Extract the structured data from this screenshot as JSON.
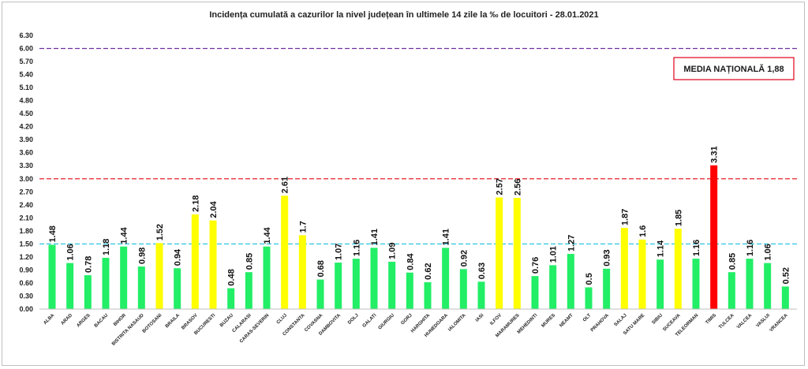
{
  "chart_data": {
    "type": "bar",
    "title": "Incidența cumulată a cazurilor la nivel județean în ultimele 14 zile la ‰ de locuitori - 28.01.2021",
    "ylim": [
      0,
      6.3
    ],
    "yticks": [
      "0.00",
      "0.30",
      "0.60",
      "0.90",
      "1.20",
      "1.50",
      "1.80",
      "2.10",
      "2.40",
      "2.70",
      "3.00",
      "3.30",
      "3.60",
      "3.90",
      "4.20",
      "4.50",
      "4.80",
      "5.10",
      "5.40",
      "5.70",
      "6.00",
      "6.30"
    ],
    "categories": [
      "ALBA",
      "ARAD",
      "ARGES",
      "BACAU",
      "BIHOR",
      "BISTRITA NASAUD",
      "BOTOSANI",
      "BRAILA",
      "BRASOV",
      "BUCURESTI",
      "BUZAU",
      "CALARASI",
      "CARAS-SEVERIN",
      "CLUJ",
      "CONSTANTA",
      "COVASNA",
      "DAMBOVITA",
      "DOLJ",
      "GALATI",
      "GIURGIU",
      "GORJ",
      "HARGHITA",
      "HUNEDOARA",
      "IALOMITA",
      "IASI",
      "ILFOV",
      "MARAMURES",
      "MEHEDINTI",
      "MURES",
      "NEAMT",
      "OLT",
      "PRAHOVA",
      "SALAJ",
      "SATU MARE",
      "SIBIU",
      "SUCEAVA",
      "TELEORMAN",
      "TIMIS",
      "TULCEA",
      "VALCEA",
      "VASLUI",
      "VRANCEA"
    ],
    "values": [
      1.48,
      1.06,
      0.78,
      1.18,
      1.44,
      0.98,
      1.52,
      0.94,
      2.18,
      2.04,
      0.48,
      0.85,
      1.44,
      2.61,
      1.7,
      0.68,
      1.07,
      1.16,
      1.41,
      1.09,
      0.84,
      0.62,
      1.41,
      0.92,
      0.63,
      2.57,
      2.56,
      0.76,
      1.01,
      1.27,
      0.5,
      0.93,
      1.87,
      1.6,
      1.14,
      1.85,
      1.16,
      3.31,
      0.85,
      1.16,
      1.06,
      0.52
    ],
    "value_labels": [
      "1.48",
      "1.06",
      "0.78",
      "1.18",
      "1.44",
      "0.98",
      "1.52",
      "0.94",
      "2.18",
      "2.04",
      "0.48",
      "0.85",
      "1.44",
      "2.61",
      "1.7",
      "0.68",
      "1.07",
      "1.16",
      "1.41",
      "1.09",
      "0.84",
      "0.62",
      "1.41",
      "0.92",
      "0.63",
      "2.57",
      "2.56",
      "0.76",
      "1.01",
      "1.27",
      "0.5",
      "0.93",
      "1.87",
      "1.6",
      "1.14",
      "1.85",
      "1.16",
      "3.31",
      "0.85",
      "1.16",
      "1.06",
      "0.52"
    ],
    "colors": {
      "green": "#22ee66",
      "yellow": "#ffff00",
      "red": "#ff0000"
    },
    "thresholds": [
      {
        "value": 1.5,
        "color": "#2fc4e0"
      },
      {
        "value": 3.0,
        "color": "#e8202a"
      },
      {
        "value": 6.0,
        "color": "#7030a0"
      }
    ],
    "annotation": "MEDIA NAȚIONALĂ  1,88",
    "grid": false,
    "legend": "none"
  }
}
